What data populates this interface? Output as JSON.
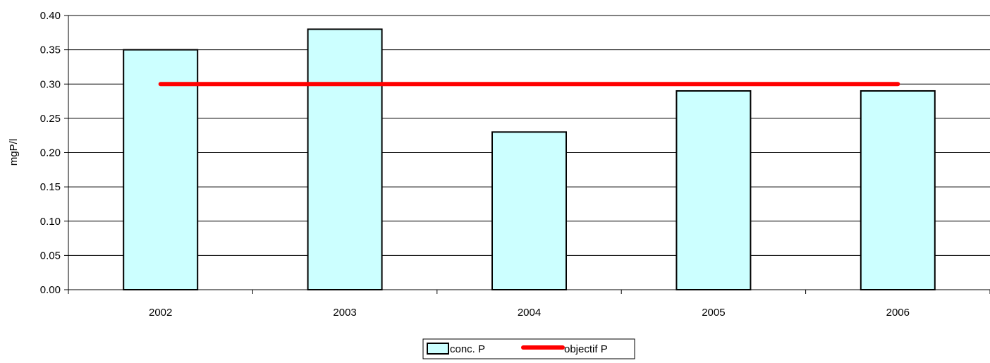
{
  "chart_data": {
    "type": "bar",
    "categories": [
      "2002",
      "2003",
      "2004",
      "2005",
      "2006"
    ],
    "series": [
      {
        "name": "conc. P",
        "kind": "bar",
        "values": [
          0.35,
          0.38,
          0.23,
          0.29,
          0.29
        ],
        "color": "#ccffff",
        "stroke": "#000000"
      },
      {
        "name": "objectif P",
        "kind": "line",
        "values": [
          0.3,
          0.3,
          0.3,
          0.3,
          0.3
        ],
        "color": "#ff0000"
      }
    ],
    "ylabel": "mgP/l",
    "xlabel": "",
    "ylim": [
      0,
      0.4
    ],
    "yticks": [
      "0.00",
      "0.05",
      "0.10",
      "0.15",
      "0.20",
      "0.25",
      "0.30",
      "0.35",
      "0.40"
    ],
    "grid": true,
    "legend_position": "bottom-center"
  }
}
